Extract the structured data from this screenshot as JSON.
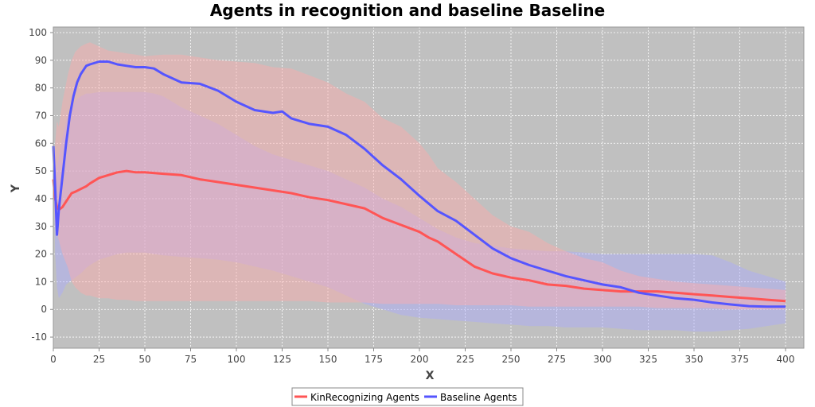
{
  "colors": {
    "plot_background": "#c0c0c0",
    "grid": "#ffffff",
    "kin_line": "#ff5555",
    "kin_band": "#ffaaaa",
    "base_line": "#5555ff",
    "base_band": "#aaaaff"
  },
  "chart_data": {
    "type": "line",
    "title": "Agents in recognition and baseline Baseline",
    "xlabel": "X",
    "ylabel": "Y",
    "xlim": [
      0,
      410
    ],
    "ylim": [
      -14,
      102
    ],
    "xticks": [
      0,
      25,
      50,
      75,
      100,
      125,
      150,
      175,
      200,
      225,
      250,
      275,
      300,
      325,
      350,
      375,
      400
    ],
    "yticks": [
      -10,
      0,
      10,
      20,
      30,
      40,
      50,
      60,
      70,
      80,
      90,
      100
    ],
    "grid": true,
    "legend_position": "bottom",
    "series": [
      {
        "name": "KinRecognizing Agents",
        "color_key": "kin",
        "x": [
          0,
          1,
          2,
          3,
          5,
          8,
          10,
          12,
          15,
          18,
          20,
          25,
          30,
          35,
          40,
          45,
          50,
          60,
          70,
          80,
          90,
          100,
          110,
          120,
          130,
          140,
          150,
          160,
          170,
          180,
          190,
          200,
          205,
          210,
          220,
          230,
          240,
          250,
          260,
          270,
          280,
          290,
          300,
          310,
          320,
          330,
          340,
          350,
          360,
          370,
          380,
          390,
          400
        ],
        "y": [
          47,
          40,
          37,
          36,
          37,
          40,
          42,
          42.5,
          43.5,
          44.5,
          45.5,
          47.5,
          48.5,
          49.5,
          50,
          49.5,
          49.5,
          49,
          48.5,
          47,
          46,
          45,
          44,
          43,
          42,
          40.5,
          39.5,
          38,
          36.5,
          33,
          30.5,
          28,
          26,
          24.5,
          20,
          15.5,
          13,
          11.5,
          10.5,
          9,
          8.5,
          7.5,
          7,
          6.5,
          6.5,
          6.5,
          6,
          5.5,
          5,
          4.5,
          4,
          3.5,
          3
        ],
        "band_upper": [
          47,
          60,
          68,
          66,
          75,
          85,
          90,
          93,
          95,
          96,
          96.5,
          95,
          93.5,
          93,
          92.5,
          92,
          91.5,
          92,
          92,
          91,
          90,
          89.5,
          89,
          87.5,
          87,
          84.5,
          82,
          78,
          75,
          69,
          66,
          60,
          56,
          51,
          46,
          40,
          34,
          30,
          28,
          24,
          21,
          18.5,
          17,
          14,
          12,
          11,
          10,
          9.5,
          9,
          8.5,
          8,
          7.5,
          7
        ],
        "band_lower": [
          47,
          30,
          28,
          25,
          20,
          15,
          10,
          8,
          6,
          5,
          5,
          4,
          4,
          3.5,
          3.5,
          3,
          3,
          3,
          3,
          3,
          3,
          3,
          3,
          3,
          3,
          3,
          2.5,
          2.5,
          2.5,
          2,
          2,
          2,
          2,
          2,
          1.5,
          1.5,
          1.5,
          1.5,
          1,
          1,
          1,
          1,
          1,
          1,
          1,
          0.5,
          0.5,
          0.5,
          0.5,
          0,
          0,
          0,
          0
        ]
      },
      {
        "name": "Baseline Agents",
        "color_key": "base",
        "x": [
          0,
          1,
          2,
          3,
          5,
          7,
          9,
          11,
          13,
          15,
          18,
          20,
          25,
          30,
          35,
          40,
          45,
          50,
          55,
          60,
          70,
          80,
          90,
          100,
          110,
          120,
          125,
          130,
          140,
          150,
          160,
          170,
          180,
          190,
          200,
          210,
          220,
          230,
          240,
          250,
          260,
          270,
          280,
          290,
          300,
          310,
          320,
          330,
          340,
          350,
          360,
          370,
          380,
          390,
          400
        ],
        "y": [
          59,
          44,
          27,
          36,
          48,
          60,
          70,
          77,
          82,
          85,
          88,
          88.5,
          89.5,
          89.5,
          88.5,
          88,
          87.5,
          87.5,
          87,
          85,
          82,
          81.5,
          79,
          75,
          72,
          71,
          71.5,
          69,
          67,
          66,
          63,
          58,
          52,
          47,
          41,
          35.5,
          32,
          27,
          22,
          18.5,
          16,
          14,
          12,
          10.5,
          9,
          8,
          6,
          5,
          4,
          3.5,
          2.5,
          1.8,
          1.2,
          1,
          1
        ],
        "band_upper": [
          59,
          58,
          50,
          55,
          62,
          68,
          72,
          74,
          76,
          77,
          78,
          78,
          78.5,
          78.5,
          78.5,
          78.5,
          78.5,
          78.5,
          78,
          77,
          73,
          70,
          67,
          63,
          59,
          56,
          55,
          54,
          52,
          50,
          47,
          44,
          40,
          37,
          33,
          29,
          26,
          24,
          23,
          22,
          21.5,
          21,
          21,
          20.5,
          20,
          20,
          20,
          20,
          20,
          20,
          19.5,
          17,
          14,
          12,
          10
        ],
        "band_lower": [
          59,
          20,
          8,
          4,
          6,
          9,
          10,
          11,
          12,
          13,
          15,
          16,
          18,
          19,
          20,
          20.5,
          20.5,
          20.5,
          20,
          19.5,
          19,
          18.5,
          18,
          17,
          15.5,
          14,
          13,
          12,
          10,
          8,
          5,
          2,
          0,
          -2,
          -3,
          -3.5,
          -4,
          -4.5,
          -5,
          -5.5,
          -6,
          -6,
          -6.5,
          -6.5,
          -6.5,
          -7,
          -7.5,
          -7.5,
          -7.5,
          -8,
          -8,
          -7.5,
          -7,
          -6,
          -5
        ]
      }
    ]
  }
}
